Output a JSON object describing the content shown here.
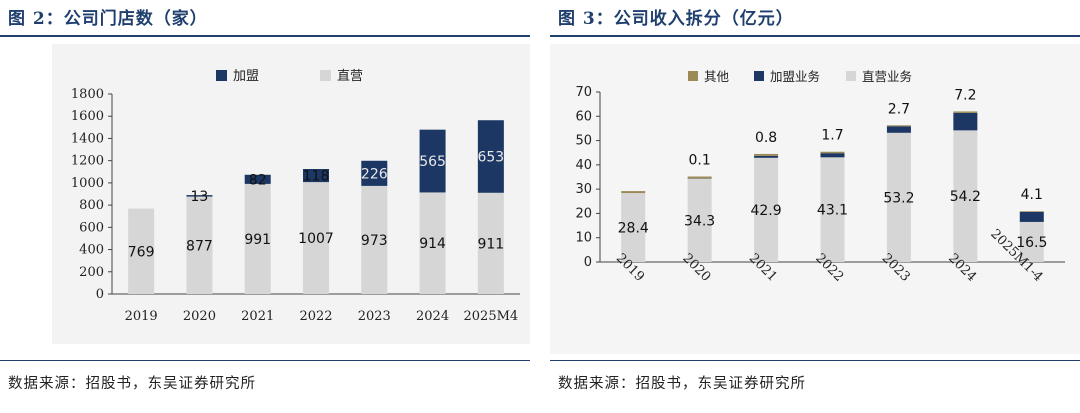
{
  "panel_left": {
    "title": "图 2：公司门店数（家）",
    "source": "数据来源：招股书，东吴证券研究所"
  },
  "panel_right": {
    "title": "图 3：公司收入拆分（亿元）",
    "source": "数据来源：招股书，东吴证券研究所"
  },
  "colors": {
    "navy": "#1c3764",
    "gray": "#d6d6d6",
    "olive": "#9c8a56",
    "title": "#1f3f6e"
  },
  "chart_data": [
    {
      "type": "bar",
      "stacked": true,
      "title": "公司门店数（家）",
      "categories": [
        "2019",
        "2020",
        "2021",
        "2022",
        "2023",
        "2024",
        "2025M4"
      ],
      "series": [
        {
          "name": "直营",
          "values": [
            769,
            877,
            991,
            1007,
            973,
            914,
            911
          ]
        },
        {
          "name": "加盟",
          "values": [
            0,
            13,
            82,
            118,
            226,
            565,
            653
          ]
        }
      ],
      "data_labels": {
        "直营": [
          "769",
          "877",
          "991",
          "1007",
          "973",
          "914",
          "911"
        ],
        "加盟": [
          "",
          "13",
          "82",
          "118",
          "226",
          "565",
          "653"
        ]
      },
      "ylim": [
        0,
        1800
      ],
      "yticks": [
        0,
        200,
        400,
        600,
        800,
        1000,
        1200,
        1400,
        1600,
        1800
      ],
      "legend": [
        "加盟",
        "直营"
      ],
      "legend_position": "top"
    },
    {
      "type": "bar",
      "stacked": true,
      "title": "公司收入拆分（亿元）",
      "categories": [
        "2019",
        "2020",
        "2021",
        "2022",
        "2023",
        "2024",
        "2025M1-4"
      ],
      "series": [
        {
          "name": "直营业务",
          "values": [
            28.4,
            34.3,
            42.9,
            43.1,
            53.2,
            54.2,
            16.5
          ]
        },
        {
          "name": "加盟业务",
          "values": [
            0,
            0.1,
            0.8,
            1.7,
            2.7,
            7.2,
            4.1
          ]
        },
        {
          "name": "其他",
          "values": [
            0.8,
            0.8,
            0.8,
            0.6,
            0.4,
            0.6,
            0.3
          ]
        }
      ],
      "data_labels": {
        "直营业务": [
          "28.4",
          "34.3",
          "42.9",
          "43.1",
          "53.2",
          "54.2",
          "16.5"
        ],
        "加盟业务": [
          "",
          "0.1",
          "0.8",
          "1.7",
          "2.7",
          "7.2",
          "4.1"
        ]
      },
      "ylim": [
        0,
        70
      ],
      "yticks": [
        0,
        10,
        20,
        30,
        40,
        50,
        60,
        70
      ],
      "legend": [
        "其他",
        "加盟业务",
        "直营业务"
      ],
      "legend_position": "top"
    }
  ]
}
